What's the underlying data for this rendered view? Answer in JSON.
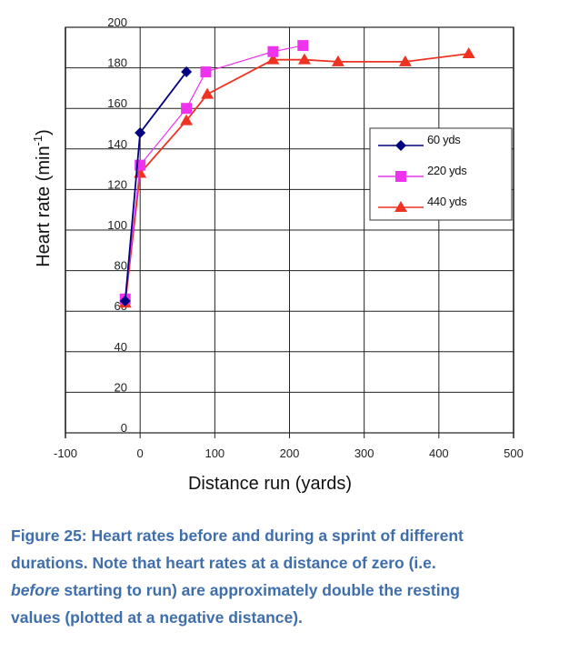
{
  "chart_data": {
    "type": "line",
    "title": "",
    "xlabel": "Distance run (yards)",
    "ylabel": "Heart rate (min",
    "ylabel_superscript": "-1",
    "ylabel_close": ")",
    "xlim": [
      -100,
      500
    ],
    "ylim": [
      0,
      200
    ],
    "x_ticks": [
      -100,
      0,
      100,
      200,
      300,
      400,
      500
    ],
    "y_ticks": [
      0,
      20,
      40,
      60,
      80,
      100,
      120,
      140,
      160,
      180,
      200
    ],
    "x_tick_labels": [
      "-100",
      "0",
      "100",
      "200",
      "300",
      "400",
      "500"
    ],
    "y_tick_labels": [
      "0",
      "20",
      "40",
      "60",
      "80",
      "100",
      "120",
      "140",
      "160",
      "180",
      "200"
    ],
    "grid": true,
    "legend_position": "right-middle",
    "series": [
      {
        "name": "60 yds",
        "color": "#000080",
        "marker": "diamond",
        "x": [
          -20,
          0,
          62
        ],
        "y": [
          65,
          148,
          178
        ]
      },
      {
        "name": "220 yds",
        "color": "#ee33ee",
        "marker": "square",
        "x": [
          -20,
          0,
          62,
          88,
          178,
          218
        ],
        "y": [
          66,
          132,
          160,
          178,
          188,
          191
        ]
      },
      {
        "name": "440 yds",
        "color": "#ee3322",
        "marker": "triangle",
        "x": [
          -20,
          0,
          62,
          90,
          178,
          220,
          265,
          355,
          440
        ],
        "y": [
          64,
          128,
          154,
          167,
          184,
          184,
          183,
          183,
          187
        ]
      }
    ]
  },
  "caption": {
    "line1": "Figure 25: Heart rates before and during a sprint of different",
    "line2": "durations. Note that heart rates at a distance of zero (i.e.",
    "line3_italic": "before",
    "line3_rest": " starting to run) are approximately double the resting",
    "line4": "values (plotted at a negative distance)."
  },
  "colors": {
    "caption": "#3f6eac",
    "grid": "#222222"
  }
}
